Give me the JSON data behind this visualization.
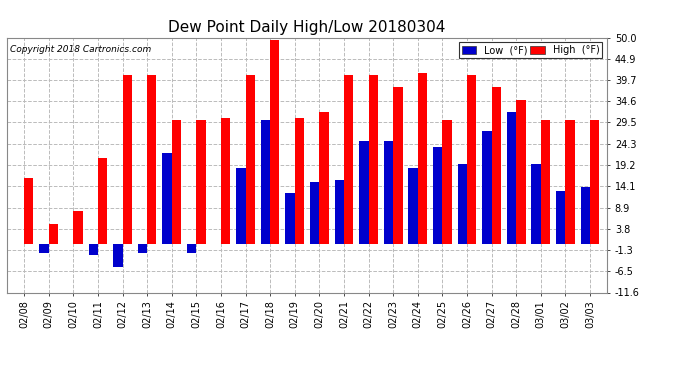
{
  "title": "Dew Point Daily High/Low 20180304",
  "copyright": "Copyright 2018 Cartronics.com",
  "dates": [
    "02/08",
    "02/09",
    "02/10",
    "02/11",
    "02/12",
    "02/13",
    "02/14",
    "02/15",
    "02/16",
    "02/17",
    "02/18",
    "02/19",
    "02/20",
    "02/21",
    "02/22",
    "02/23",
    "02/24",
    "02/25",
    "02/26",
    "02/27",
    "02/28",
    "03/01",
    "03/02",
    "03/03"
  ],
  "high": [
    16.0,
    5.0,
    8.0,
    21.0,
    41.0,
    41.0,
    30.0,
    30.0,
    30.5,
    41.0,
    49.5,
    30.5,
    32.0,
    41.0,
    41.0,
    38.0,
    41.5,
    30.0,
    41.0,
    38.0,
    35.0,
    30.0,
    30.0,
    30.0
  ],
  "low": [
    0.0,
    -2.0,
    0.0,
    -2.5,
    -5.5,
    -2.0,
    22.0,
    -2.0,
    0.0,
    18.5,
    30.0,
    12.5,
    15.0,
    15.5,
    25.0,
    25.0,
    18.5,
    23.5,
    19.5,
    27.5,
    32.0,
    19.5,
    13.0,
    14.0
  ],
  "ylim_min": -11.6,
  "ylim_max": 50.0,
  "yticks": [
    -11.6,
    -6.5,
    -1.3,
    3.8,
    8.9,
    14.1,
    19.2,
    24.3,
    29.5,
    34.6,
    39.7,
    44.9,
    50.0
  ],
  "high_color": "#ff0000",
  "low_color": "#0000cc",
  "bg_color": "#ffffff",
  "plot_bg_color": "#ffffff",
  "grid_color": "#bbbbbb",
  "title_fontsize": 11,
  "tick_fontsize": 7,
  "bar_width": 0.38
}
